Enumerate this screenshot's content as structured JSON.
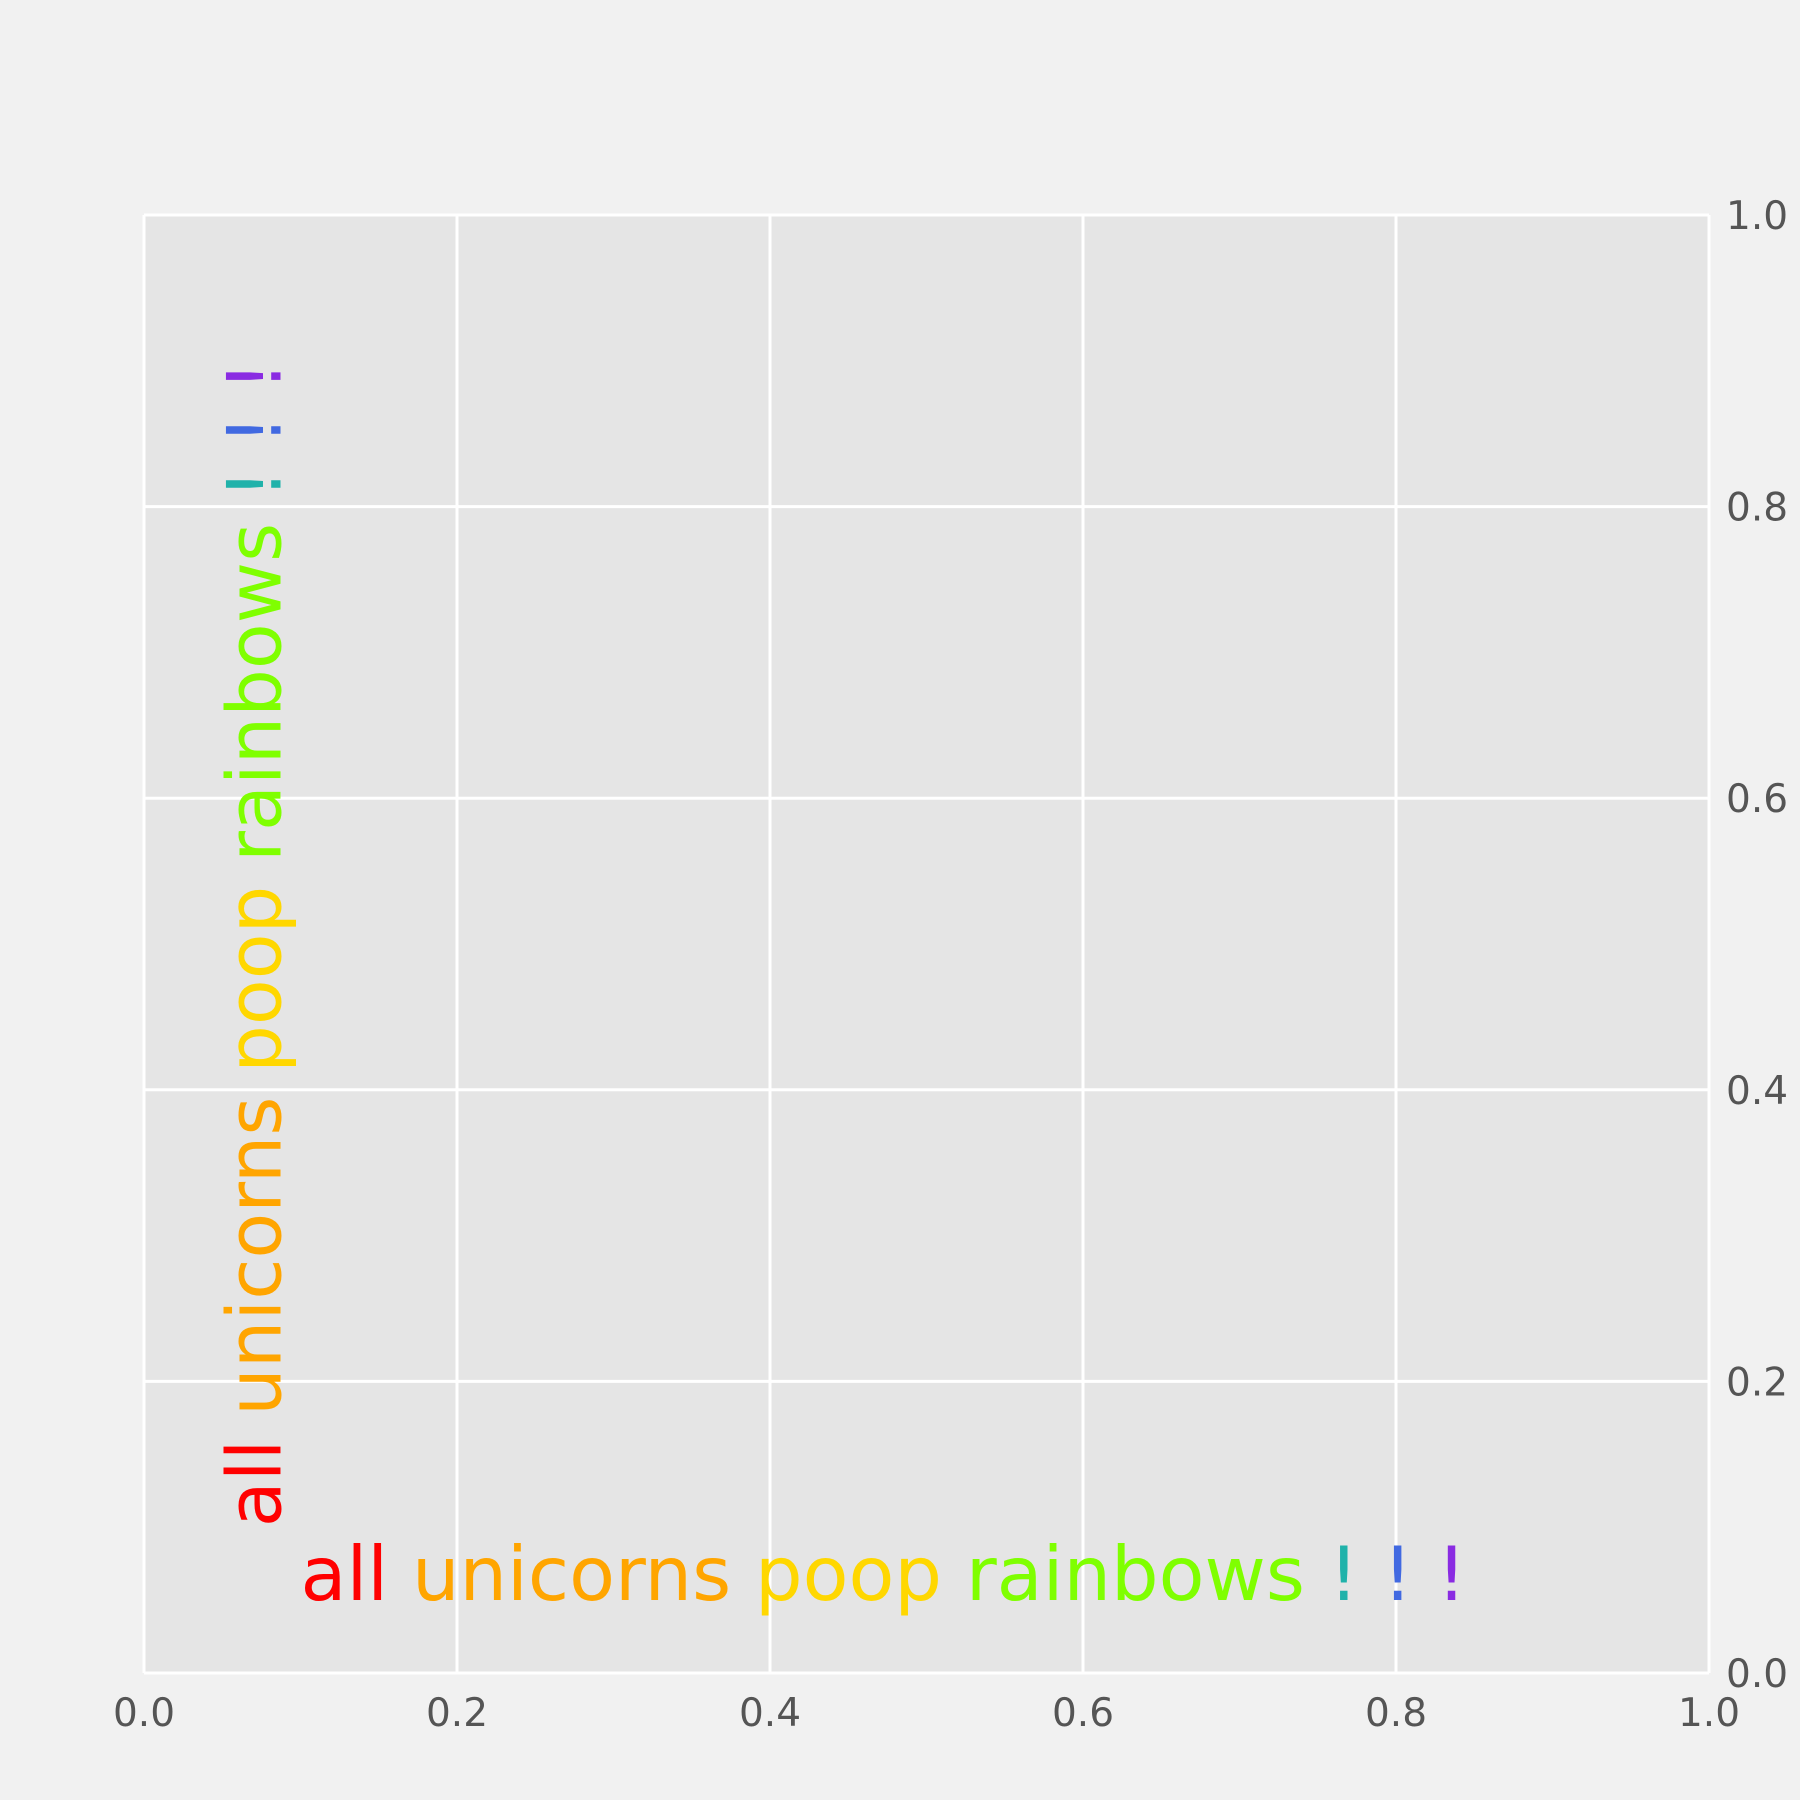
{
  "chart_data": {
    "type": "scatter",
    "title": "",
    "xlabel": "",
    "ylabel": "",
    "xlim": [
      0.0,
      1.0
    ],
    "ylim": [
      0.0,
      1.0
    ],
    "x_ticks": [
      "0.0",
      "0.2",
      "0.4",
      "0.6",
      "0.8",
      "1.0"
    ],
    "y_ticks": [
      "0.0",
      "0.2",
      "0.4",
      "0.6",
      "0.8",
      "1.0"
    ],
    "y_axis_side": "right",
    "grid": true,
    "series": [],
    "annotations": [
      {
        "id": "horizontal",
        "orientation": "horizontal",
        "anchor": {
          "x": 0.1,
          "y": 0.05
        },
        "words": [
          {
            "text": "all",
            "color": "#ff0000"
          },
          {
            "text": "unicorns",
            "color": "#ffa500"
          },
          {
            "text": "poop",
            "color": "#ffd700"
          },
          {
            "text": "rainbows",
            "color": "#7fff00"
          },
          {
            "text": "!",
            "color": "#20b2aa"
          },
          {
            "text": "!",
            "color": "#4169e1"
          },
          {
            "text": "!",
            "color": "#8a2be2"
          }
        ]
      },
      {
        "id": "vertical",
        "orientation": "vertical",
        "anchor": {
          "x": 0.05,
          "y": 0.1
        },
        "words": [
          {
            "text": "all",
            "color": "#ff0000"
          },
          {
            "text": "unicorns",
            "color": "#ffa500"
          },
          {
            "text": "poop",
            "color": "#ffd700"
          },
          {
            "text": "rainbows",
            "color": "#7fff00"
          },
          {
            "text": "!",
            "color": "#20b2aa"
          },
          {
            "text": "!",
            "color": "#4169e1"
          },
          {
            "text": "!",
            "color": "#8a2be2"
          }
        ]
      }
    ]
  },
  "colors": {
    "figure_background": "#f1f1f1",
    "axes_background": "#e5e5e5",
    "grid": "#ffffff",
    "tick_label": "#555555"
  }
}
